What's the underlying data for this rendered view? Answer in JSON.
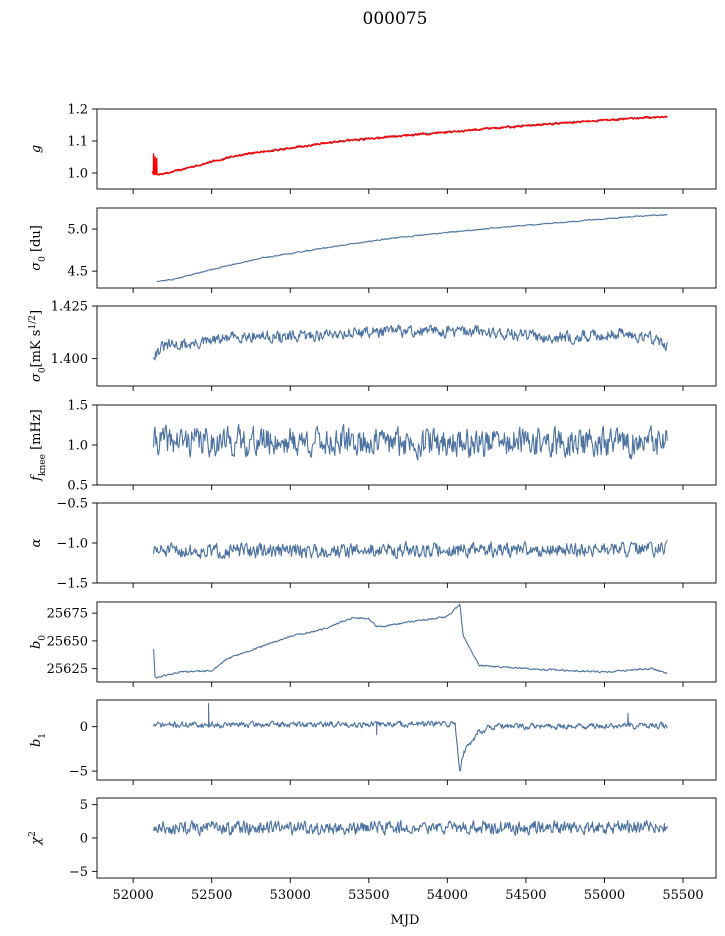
{
  "figure": {
    "title": "000075",
    "xlabel": "MJD",
    "x_ticks": [
      52000,
      52500,
      53000,
      53500,
      54000,
      54500,
      55000,
      55500
    ],
    "xlim": [
      51770,
      55710
    ],
    "line_color": "#4c72a0",
    "highlight_color": "#ff0000"
  },
  "chart_data": [
    {
      "type": "line",
      "ylabel": "g",
      "ylim": [
        0.95,
        1.2
      ],
      "y_ticks": [
        1.0,
        1.1,
        1.2
      ],
      "y_tick_labels": [
        "1.0",
        "1.1",
        "1.2"
      ],
      "series": [
        {
          "x": [
            52120,
            52130,
            52150,
            52200,
            52300,
            52500,
            52700,
            53000,
            53300,
            53600,
            54000,
            54300,
            54600,
            55000,
            55200,
            55400
          ],
          "y": [
            1.005,
            1.0,
            0.995,
            0.998,
            1.01,
            1.035,
            1.058,
            1.078,
            1.098,
            1.112,
            1.128,
            1.14,
            1.152,
            1.165,
            1.172,
            1.175
          ],
          "noise": 0.002,
          "seed": 11,
          "color": "#4c72a0"
        },
        {
          "x": [
            52120,
            52130,
            52150,
            52200,
            52300,
            52500,
            52700,
            53000,
            53300,
            53600,
            54000,
            54300,
            54600,
            55000,
            55200,
            55400
          ],
          "y": [
            1.005,
            1.0,
            0.995,
            0.998,
            1.01,
            1.035,
            1.058,
            1.078,
            1.098,
            1.112,
            1.128,
            1.14,
            1.152,
            1.165,
            1.172,
            1.175
          ],
          "noise": 0.003,
          "seed": 12,
          "color": "#ff0000",
          "spikes": [
            [
              52130,
              1.06
            ],
            [
              52140,
              1.05
            ],
            [
              52150,
              1.045
            ]
          ]
        }
      ]
    },
    {
      "type": "line",
      "ylabel": "σ0 [du]",
      "ylim": [
        4.3,
        5.25
      ],
      "y_ticks": [
        4.5,
        5.0
      ],
      "y_tick_labels": [
        "4.5",
        "5.0"
      ],
      "series": [
        {
          "x": [
            52150,
            52250,
            52500,
            52800,
            53200,
            53600,
            54000,
            54400,
            54800,
            55200,
            55400
          ],
          "y": [
            4.38,
            4.4,
            4.52,
            4.65,
            4.77,
            4.88,
            4.96,
            5.03,
            5.09,
            5.15,
            5.17
          ],
          "noise": 0.006,
          "seed": 21,
          "color": "#4c72a0"
        }
      ]
    },
    {
      "type": "line",
      "ylabel": "σ0[mK s1/2]",
      "ylim": [
        1.387,
        1.425
      ],
      "y_ticks": [
        1.4,
        1.425
      ],
      "y_tick_labels": [
        "1.400",
        "1.425"
      ],
      "series": [
        {
          "x": [
            52130,
            52200,
            52400,
            52700,
            53000,
            53300,
            53600,
            53900,
            54200,
            54500,
            54800,
            55100,
            55300,
            55400
          ],
          "y": [
            1.402,
            1.406,
            1.407,
            1.411,
            1.41,
            1.412,
            1.413,
            1.413,
            1.413,
            1.411,
            1.41,
            1.412,
            1.41,
            1.406
          ],
          "noise": 0.0025,
          "seed": 31,
          "color": "#4c72a0"
        }
      ]
    },
    {
      "type": "line",
      "ylabel": "fknee [mHz]",
      "ylim": [
        0.5,
        1.5
      ],
      "y_ticks": [
        0.5,
        1.0,
        1.5
      ],
      "y_tick_labels": [
        "0.5",
        "1.0",
        "1.5"
      ],
      "series": [
        {
          "x": [
            52130,
            55400
          ],
          "y": [
            1.05,
            1.02
          ],
          "noise": 0.16,
          "seed": 41,
          "color": "#4c72a0"
        }
      ]
    },
    {
      "type": "line",
      "ylabel": "α",
      "ylim": [
        -1.5,
        -0.5
      ],
      "y_ticks": [
        -1.5,
        -1.0,
        -0.5
      ],
      "y_tick_labels": [
        "−1.5",
        "−1.0",
        "−0.5"
      ],
      "series": [
        {
          "x": [
            52130,
            55400
          ],
          "y": [
            -1.1,
            -1.08
          ],
          "noise": 0.08,
          "seed": 51,
          "color": "#4c72a0"
        }
      ]
    },
    {
      "type": "line",
      "ylabel": "b0",
      "ylim": [
        25613,
        25685
      ],
      "y_ticks": [
        25625,
        25650,
        25675
      ],
      "y_tick_labels": [
        "25625",
        "25650",
        "25675"
      ],
      "series": [
        {
          "x": [
            52130,
            52140,
            52150,
            52300,
            52500,
            52600,
            52800,
            53000,
            53200,
            53400,
            53500,
            53550,
            53600,
            53800,
            54000,
            54080,
            54100,
            54200,
            54500,
            55000,
            55300,
            55400
          ],
          "y": [
            25643,
            25616,
            25617,
            25622,
            25623,
            25634,
            25644,
            25654,
            25660,
            25671,
            25670,
            25663,
            25663,
            25668,
            25672,
            25683,
            25655,
            25628,
            25625,
            25622,
            25625,
            25621
          ],
          "noise": 0.7,
          "seed": 61,
          "color": "#4c72a0"
        }
      ]
    },
    {
      "type": "line",
      "ylabel": "b1",
      "ylim": [
        -6,
        3
      ],
      "y_ticks": [
        -5,
        0
      ],
      "y_tick_labels": [
        "−5",
        "0"
      ],
      "series": [
        {
          "x": [
            52130,
            54050,
            54070,
            54080,
            54100,
            54200,
            54300,
            55400
          ],
          "y": [
            0.2,
            0.3,
            -3.5,
            -5.0,
            -3.0,
            -0.5,
            0.0,
            0.1
          ],
          "noise": 0.3,
          "seed": 71,
          "color": "#4c72a0",
          "spikes": [
            [
              52480,
              2.6
            ],
            [
              53550,
              -0.9
            ],
            [
              55150,
              1.5
            ]
          ]
        }
      ]
    },
    {
      "type": "line",
      "ylabel": "χ2",
      "ylim": [
        -6,
        6
      ],
      "y_ticks": [
        -5,
        0,
        5
      ],
      "y_tick_labels": [
        "−5",
        "0",
        "5"
      ],
      "series": [
        {
          "x": [
            52130,
            55400
          ],
          "y": [
            1.5,
            1.6
          ],
          "noise": 0.9,
          "seed": 81,
          "color": "#4c72a0"
        }
      ]
    }
  ]
}
